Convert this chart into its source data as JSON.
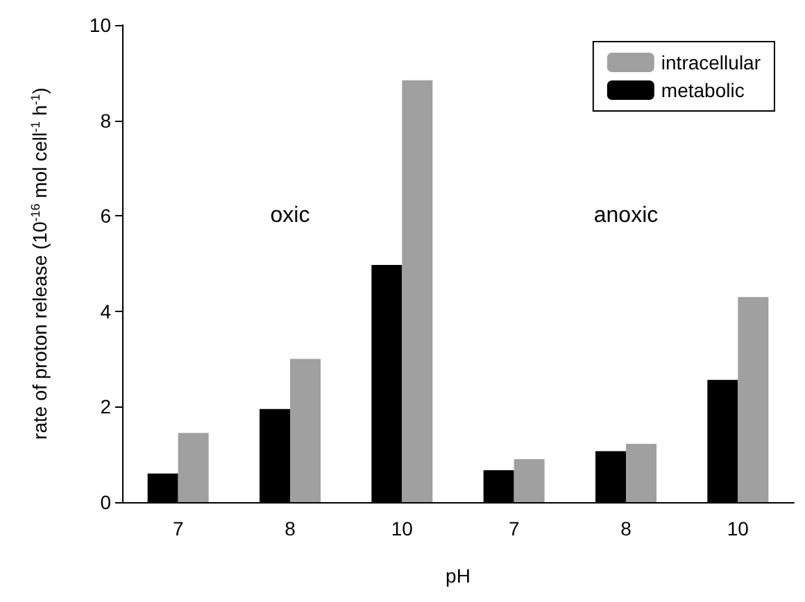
{
  "chart_data": {
    "type": "bar",
    "xlabel": "pH",
    "ylabel": "rate of proton release (10$^{-16}$ mol cell$^{-1}$ h$^{-1}$)",
    "categories": [
      "7",
      "8",
      "10",
      "7",
      "8",
      "10"
    ],
    "series": [
      {
        "name": "intracellular",
        "color": "#a0a0a0",
        "values": [
          1.45,
          3.0,
          8.84,
          0.9,
          1.22,
          4.3
        ]
      },
      {
        "name": "metabolic",
        "color": "#000000",
        "values": [
          0.6,
          1.95,
          4.97,
          0.67,
          1.07,
          2.56
        ]
      }
    ],
    "ylim": [
      0,
      10
    ],
    "yticks": [
      0,
      2,
      4,
      6,
      8,
      10
    ],
    "annotations": [
      "oxic",
      "anoxic"
    ],
    "legend": "top right",
    "grid": false
  }
}
